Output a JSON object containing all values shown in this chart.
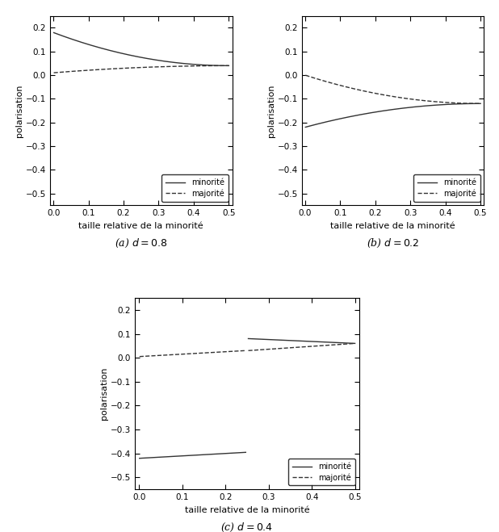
{
  "title_a": "(a) $d = 0.8$",
  "title_b": "(b) $d = 0.2$",
  "title_c": "(c) $d = 0.4$",
  "xlabel": "taille relative de la minorité",
  "ylabel": "polarisation",
  "legend_minority": "minorité",
  "legend_majority": "majorité",
  "xlim": [
    -0.01,
    0.51
  ],
  "ylim": [
    -0.55,
    0.25
  ],
  "xticks": [
    0.0,
    0.1,
    0.2,
    0.3,
    0.4,
    0.5
  ],
  "yticks_a": [
    -0.5,
    -0.4,
    -0.3,
    -0.2,
    -0.1,
    0.0,
    0.1,
    0.2
  ],
  "yticks_b": [
    -0.5,
    -0.4,
    -0.3,
    -0.2,
    -0.1,
    0.0,
    0.1,
    0.2
  ],
  "yticks_c": [
    -0.5,
    -0.4,
    -0.3,
    -0.2,
    -0.1,
    0.0,
    0.1,
    0.2
  ],
  "line_color": "#333333",
  "background_color": "#ffffff"
}
